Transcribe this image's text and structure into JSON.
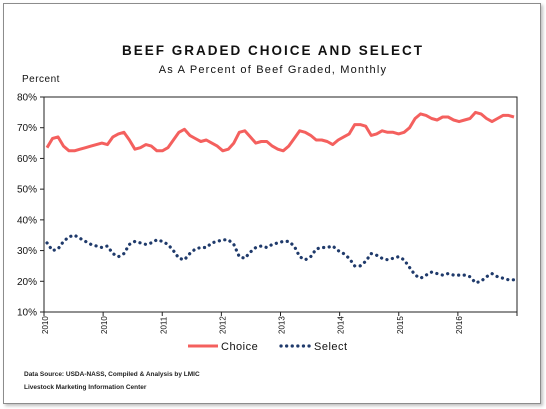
{
  "chart_data": {
    "type": "line",
    "title": "BEEF GRADED CHOICE AND SELECT",
    "subtitle": "As A Percent of Beef Graded, Monthly",
    "ylabel": "Percent",
    "xlabel": "",
    "ylim": [
      10,
      80
    ],
    "yticks": [
      "10%",
      "20%",
      "30%",
      "40%",
      "50%",
      "60%",
      "70%",
      "80%"
    ],
    "xticks": [
      "2010",
      "2010",
      "2011",
      "2012",
      "2013",
      "2014",
      "2015",
      "2016"
    ],
    "grid": false,
    "legend_position": "bottom",
    "series": [
      {
        "name": "Choice",
        "color": "#f4605e",
        "style": "solid",
        "values": [
          63.5,
          66.5,
          67,
          64,
          62.5,
          62.5,
          63,
          63.5,
          64,
          64.5,
          65,
          64.5,
          67,
          68,
          68.5,
          66,
          63,
          63.5,
          64.5,
          64,
          62.5,
          62.5,
          63.5,
          66,
          68.5,
          69.5,
          67.5,
          66.5,
          65.5,
          66,
          65,
          64,
          62.5,
          63,
          65,
          68.5,
          69,
          67,
          65,
          65.5,
          65.5,
          64,
          63,
          62.5,
          64,
          66.5,
          69,
          68.5,
          67.5,
          66,
          66,
          65.5,
          64.5,
          66,
          67,
          68,
          71,
          71,
          70.5,
          67.5,
          68,
          69,
          68.5,
          68.5,
          68,
          68.5,
          70,
          73,
          74.5,
          74,
          73,
          72.5,
          73.5,
          73.5,
          72.5,
          72,
          72.5,
          73,
          75,
          74.5,
          73,
          72,
          73,
          74,
          74,
          73.5
        ]
      },
      {
        "name": "Select",
        "color": "#1f3a6b",
        "style": "dotted",
        "values": [
          32.5,
          30,
          30.5,
          33,
          34.5,
          35,
          34,
          33,
          32,
          31.5,
          31,
          31.5,
          29,
          28,
          29,
          32,
          33,
          32.5,
          32,
          32.5,
          33.5,
          33,
          32,
          30,
          27.5,
          27,
          29,
          30.5,
          31,
          31,
          32.5,
          33,
          33.5,
          33.5,
          32,
          28,
          27.5,
          29.5,
          31,
          31.5,
          31,
          32,
          32.5,
          33,
          33,
          31.5,
          28,
          27,
          28,
          30.5,
          31,
          31,
          31.5,
          30,
          29,
          27.5,
          25,
          25,
          26.5,
          29,
          28.5,
          27.5,
          27,
          27.5,
          28,
          27,
          24.5,
          22,
          21,
          22,
          23,
          22.5,
          22,
          22.5,
          22,
          22,
          22,
          21.5,
          19.5,
          20,
          21.5,
          22.5,
          21.5,
          21,
          20.5,
          20.5
        ]
      }
    ]
  },
  "footer": {
    "source_line": "Data Source:  USDA-NASS, Compiled & Analysis by LMIC",
    "org_line": "Livestock Marketing Information Center"
  }
}
